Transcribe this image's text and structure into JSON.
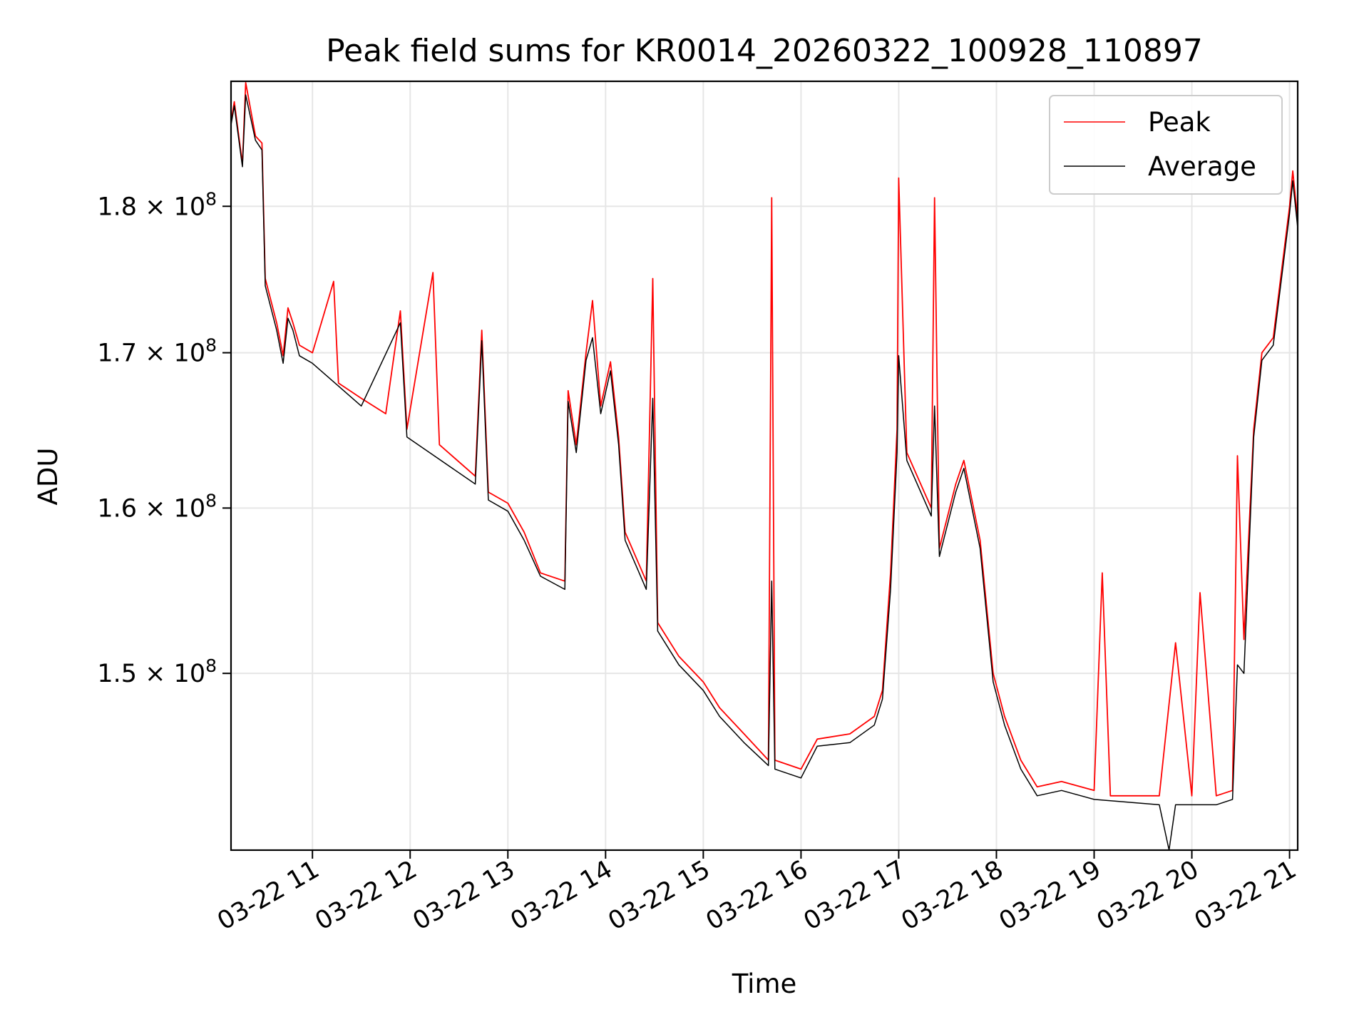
{
  "chart_data": {
    "type": "line",
    "title": "Peak field sums for KR0014_20260322_100928_110897",
    "xlabel": "Time",
    "ylabel": "ADU",
    "y_scale": "log",
    "grid": true,
    "legend_position": "top-right",
    "xlim": [
      "03-22 10:10",
      "03-22 21:05"
    ],
    "ylim": [
      140000000,
      189000000
    ],
    "x_ticks": [
      {
        "value": "03-22 11:00",
        "label": "03-22 11"
      },
      {
        "value": "03-22 12:00",
        "label": "03-22 12"
      },
      {
        "value": "03-22 13:00",
        "label": "03-22 13"
      },
      {
        "value": "03-22 14:00",
        "label": "03-22 14"
      },
      {
        "value": "03-22 15:00",
        "label": "03-22 15"
      },
      {
        "value": "03-22 16:00",
        "label": "03-22 16"
      },
      {
        "value": "03-22 17:00",
        "label": "03-22 17"
      },
      {
        "value": "03-22 18:00",
        "label": "03-22 18"
      },
      {
        "value": "03-22 19:00",
        "label": "03-22 19"
      },
      {
        "value": "03-22 20:00",
        "label": "03-22 20"
      },
      {
        "value": "03-22 21:00",
        "label": "03-22 21"
      }
    ],
    "y_ticks": [
      {
        "value": 150000000,
        "mantissa": "1.5",
        "exp": "8"
      },
      {
        "value": 160000000,
        "mantissa": "1.6",
        "exp": "8"
      },
      {
        "value": 170000000,
        "mantissa": "1.7",
        "exp": "8"
      },
      {
        "value": 180000000,
        "mantissa": "1.8",
        "exp": "8"
      }
    ],
    "series": [
      {
        "name": "Peak",
        "color": "#ff0000",
        "points": [
          [
            "03-22 10:10",
            186.0
          ],
          [
            "03-22 10:12",
            187.5
          ],
          [
            "03-22 10:17",
            183.0
          ],
          [
            "03-22 10:19",
            188.9
          ],
          [
            "03-22 10:25",
            185.0
          ],
          [
            "03-22 10:29",
            184.5
          ],
          [
            "03-22 10:31",
            175.0
          ],
          [
            "03-22 10:38",
            172.0
          ],
          [
            "03-22 10:42",
            169.8
          ],
          [
            "03-22 10:45",
            173.0
          ],
          [
            "03-22 10:48",
            172.0
          ],
          [
            "03-22 10:52",
            170.5
          ],
          [
            "03-22 11:00",
            170.0
          ],
          [
            "03-22 11:13",
            174.8
          ],
          [
            "03-22 11:16",
            168.0
          ],
          [
            "03-22 11:30",
            167.0
          ],
          [
            "03-22 11:45",
            166.0
          ],
          [
            "03-22 11:54",
            172.8
          ],
          [
            "03-22 11:58",
            165.0
          ],
          [
            "03-22 12:14",
            175.4
          ],
          [
            "03-22 12:18",
            164.0
          ],
          [
            "03-22 12:40",
            162.0
          ],
          [
            "03-22 12:44",
            171.5
          ],
          [
            "03-22 12:48",
            161.0
          ],
          [
            "03-22 13:00",
            160.3
          ],
          [
            "03-22 13:10",
            158.5
          ],
          [
            "03-22 13:20",
            156.0
          ],
          [
            "03-22 13:35",
            155.5
          ],
          [
            "03-22 13:37",
            167.5
          ],
          [
            "03-22 13:42",
            164.0
          ],
          [
            "03-22 13:48",
            170.0
          ],
          [
            "03-22 13:52",
            173.5
          ],
          [
            "03-22 13:57",
            166.5
          ],
          [
            "03-22 14:03",
            169.4
          ],
          [
            "03-22 14:08",
            164.5
          ],
          [
            "03-22 14:12",
            158.5
          ],
          [
            "03-22 14:25",
            155.5
          ],
          [
            "03-22 14:29",
            175.0
          ],
          [
            "03-22 14:32",
            153.0
          ],
          [
            "03-22 14:45",
            151.0
          ],
          [
            "03-22 15:00",
            149.5
          ],
          [
            "03-22 15:10",
            148.0
          ],
          [
            "03-22 15:25",
            146.5
          ],
          [
            "03-22 15:40",
            145.0
          ],
          [
            "03-22 15:42",
            180.6
          ],
          [
            "03-22 15:44",
            145.0
          ],
          [
            "03-22 16:00",
            144.5
          ],
          [
            "03-22 16:10",
            146.2
          ],
          [
            "03-22 16:30",
            146.5
          ],
          [
            "03-22 16:45",
            147.5
          ],
          [
            "03-22 16:50",
            149.0
          ],
          [
            "03-22 16:55",
            156.0
          ],
          [
            "03-22 16:59",
            165.0
          ],
          [
            "03-22 17:00",
            182.0
          ],
          [
            "03-22 17:05",
            163.5
          ],
          [
            "03-22 17:20",
            160.0
          ],
          [
            "03-22 17:22",
            180.6
          ],
          [
            "03-22 17:25",
            157.5
          ],
          [
            "03-22 17:35",
            161.5
          ],
          [
            "03-22 17:40",
            163.0
          ],
          [
            "03-22 17:50",
            158.0
          ],
          [
            "03-22 17:58",
            150.0
          ],
          [
            "03-22 18:05",
            147.5
          ],
          [
            "03-22 18:15",
            145.0
          ],
          [
            "03-22 18:25",
            143.5
          ],
          [
            "03-22 18:40",
            143.8
          ],
          [
            "03-22 19:00",
            143.3
          ],
          [
            "03-22 19:05",
            156.0
          ],
          [
            "03-22 19:10",
            143.0
          ],
          [
            "03-22 19:40",
            143.0
          ],
          [
            "03-22 19:50",
            151.8
          ],
          [
            "03-22 20:00",
            143.0
          ],
          [
            "03-22 20:05",
            154.8
          ],
          [
            "03-22 20:15",
            143.0
          ],
          [
            "03-22 20:25",
            143.3
          ],
          [
            "03-22 20:28",
            163.3
          ],
          [
            "03-22 20:32",
            152.0
          ],
          [
            "03-22 20:38",
            165.0
          ],
          [
            "03-22 20:43",
            170.0
          ],
          [
            "03-22 20:50",
            171.0
          ],
          [
            "03-22 21:00",
            180.0
          ],
          [
            "03-22 21:02",
            182.5
          ],
          [
            "03-22 21:05",
            179.0
          ]
        ]
      },
      {
        "name": "Average",
        "color": "#000000",
        "points": [
          [
            "03-22 10:10",
            185.8
          ],
          [
            "03-22 10:12",
            187.2
          ],
          [
            "03-22 10:17",
            182.8
          ],
          [
            "03-22 10:19",
            188.0
          ],
          [
            "03-22 10:25",
            184.7
          ],
          [
            "03-22 10:29",
            184.0
          ],
          [
            "03-22 10:31",
            174.5
          ],
          [
            "03-22 10:38",
            171.5
          ],
          [
            "03-22 10:42",
            169.3
          ],
          [
            "03-22 10:45",
            172.3
          ],
          [
            "03-22 10:48",
            171.5
          ],
          [
            "03-22 10:52",
            169.8
          ],
          [
            "03-22 11:00",
            169.3
          ],
          [
            "03-22 11:30",
            166.5
          ],
          [
            "03-22 11:54",
            172.0
          ],
          [
            "03-22 11:58",
            164.5
          ],
          [
            "03-22 12:40",
            161.5
          ],
          [
            "03-22 12:44",
            170.8
          ],
          [
            "03-22 12:48",
            160.5
          ],
          [
            "03-22 13:00",
            159.8
          ],
          [
            "03-22 13:10",
            158.0
          ],
          [
            "03-22 13:20",
            155.8
          ],
          [
            "03-22 13:35",
            155.0
          ],
          [
            "03-22 13:37",
            166.8
          ],
          [
            "03-22 13:42",
            163.5
          ],
          [
            "03-22 13:48",
            169.5
          ],
          [
            "03-22 13:52",
            171.0
          ],
          [
            "03-22 13:57",
            166.0
          ],
          [
            "03-22 14:03",
            168.8
          ],
          [
            "03-22 14:08",
            164.0
          ],
          [
            "03-22 14:12",
            158.0
          ],
          [
            "03-22 14:25",
            155.0
          ],
          [
            "03-22 14:29",
            167.0
          ],
          [
            "03-22 14:32",
            152.5
          ],
          [
            "03-22 14:45",
            150.5
          ],
          [
            "03-22 15:00",
            149.0
          ],
          [
            "03-22 15:10",
            147.5
          ],
          [
            "03-22 15:25",
            146.0
          ],
          [
            "03-22 15:40",
            144.7
          ],
          [
            "03-22 15:42",
            155.5
          ],
          [
            "03-22 15:44",
            144.5
          ],
          [
            "03-22 16:00",
            144.0
          ],
          [
            "03-22 16:10",
            145.8
          ],
          [
            "03-22 16:30",
            146.0
          ],
          [
            "03-22 16:45",
            147.0
          ],
          [
            "03-22 16:50",
            148.5
          ],
          [
            "03-22 16:55",
            155.0
          ],
          [
            "03-22 16:59",
            163.5
          ],
          [
            "03-22 17:00",
            169.8
          ],
          [
            "03-22 17:05",
            163.0
          ],
          [
            "03-22 17:20",
            159.5
          ],
          [
            "03-22 17:22",
            166.5
          ],
          [
            "03-22 17:25",
            157.0
          ],
          [
            "03-22 17:35",
            161.0
          ],
          [
            "03-22 17:40",
            162.5
          ],
          [
            "03-22 17:50",
            157.5
          ],
          [
            "03-22 17:58",
            149.5
          ],
          [
            "03-22 18:05",
            147.0
          ],
          [
            "03-22 18:15",
            144.5
          ],
          [
            "03-22 18:25",
            143.0
          ],
          [
            "03-22 18:40",
            143.3
          ],
          [
            "03-22 19:00",
            142.8
          ],
          [
            "03-22 19:40",
            142.5
          ],
          [
            "03-22 19:46",
            140.0
          ],
          [
            "03-22 19:50",
            142.5
          ],
          [
            "03-22 20:15",
            142.5
          ],
          [
            "03-22 20:25",
            142.8
          ],
          [
            "03-22 20:28",
            150.5
          ],
          [
            "03-22 20:32",
            150.0
          ],
          [
            "03-22 20:38",
            164.5
          ],
          [
            "03-22 20:43",
            169.5
          ],
          [
            "03-22 20:50",
            170.5
          ],
          [
            "03-22 21:00",
            179.5
          ],
          [
            "03-22 21:02",
            181.8
          ],
          [
            "03-22 21:05",
            178.5
          ]
        ]
      }
    ]
  }
}
